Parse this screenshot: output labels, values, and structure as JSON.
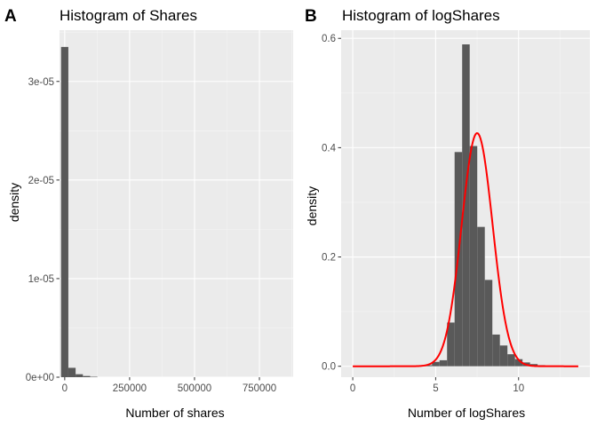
{
  "colors": {
    "panel_bg": "#ebebeb",
    "grid_major": "#ffffff",
    "grid_minor": "#f5f5f5",
    "bar_fill": "#595959",
    "density_line": "#ff0000",
    "tick_text": "#4d4d4d"
  },
  "chart_data": [
    {
      "type": "bar",
      "tag": "A",
      "title": "Histogram of Shares",
      "xlabel": "Number of shares",
      "ylabel": "density",
      "xlim": [
        -20000,
        880000
      ],
      "ylim": [
        0,
        3.52e-05
      ],
      "x_ticks": [
        0,
        250000,
        500000,
        750000
      ],
      "x_tick_labels": [
        "0",
        "250000",
        "500000",
        "750000"
      ],
      "y_ticks": [
        0,
        1e-05,
        2e-05,
        3e-05
      ],
      "y_tick_labels": [
        "0e+00",
        "1e-05",
        "2e-05",
        "3e-05"
      ],
      "bin_width": 28000,
      "bins": [
        {
          "x": 0,
          "density": 3.35e-05
        },
        {
          "x": 28000,
          "density": 9.5e-07
        },
        {
          "x": 56000,
          "density": 3e-07
        },
        {
          "x": 84000,
          "density": 1.2e-07
        },
        {
          "x": 112000,
          "density": 4e-08
        }
      ]
    },
    {
      "type": "bar",
      "tag": "B",
      "title": "Histogram of logShares",
      "xlabel": "Number of logShares",
      "ylabel": "density",
      "xlim": [
        -0.7,
        14.3
      ],
      "ylim": [
        -0.02,
        0.615
      ],
      "x_ticks": [
        0,
        5,
        10
      ],
      "x_tick_labels": [
        "0",
        "5",
        "10"
      ],
      "y_ticks": [
        0,
        0.2,
        0.4,
        0.6
      ],
      "y_tick_labels": [
        "0.0",
        "0.2",
        "0.4",
        "0.6"
      ],
      "bin_width": 0.455,
      "bins": [
        {
          "x": 4.55,
          "density": 0.002
        },
        {
          "x": 5.005,
          "density": 0.008
        },
        {
          "x": 5.46,
          "density": 0.011
        },
        {
          "x": 5.915,
          "density": 0.08
        },
        {
          "x": 6.37,
          "density": 0.392
        },
        {
          "x": 6.825,
          "density": 0.589
        },
        {
          "x": 7.28,
          "density": 0.403
        },
        {
          "x": 7.735,
          "density": 0.255
        },
        {
          "x": 8.19,
          "density": 0.158
        },
        {
          "x": 8.645,
          "density": 0.058
        },
        {
          "x": 9.1,
          "density": 0.038
        },
        {
          "x": 9.555,
          "density": 0.022
        },
        {
          "x": 10.01,
          "density": 0.013
        },
        {
          "x": 10.465,
          "density": 0.007
        },
        {
          "x": 10.92,
          "density": 0.004
        },
        {
          "x": 11.375,
          "density": 0.002
        }
      ],
      "density_curve": {
        "type": "normal",
        "mean": 7.5,
        "sd": 0.935,
        "x_range": [
          0,
          13.6
        ]
      }
    }
  ]
}
